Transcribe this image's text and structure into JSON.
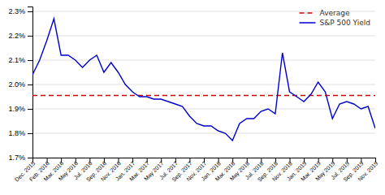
{
  "chart_data": {
    "type": "line",
    "categories": [
      "Dec. 2015",
      null,
      "Feb. 2016",
      null,
      "Mar. 2016",
      null,
      "May 2016",
      null,
      "Jul. 2016",
      null,
      "Sep. 2016",
      null,
      "Nov. 2016",
      null,
      "Jan. 2017",
      null,
      "Mar. 2017",
      null,
      "May 2017",
      null,
      "Jul. 2017",
      null,
      "Sep. 2017",
      null,
      "Nov. 2017",
      null,
      "Jan. 2018",
      null,
      "Mar. 2018",
      null,
      "May 2018",
      null,
      "Jul. 2018",
      null,
      "Sep. 2018",
      null,
      "Nov. 2018",
      null,
      "Jan. 2019",
      null,
      "Mar. 2019",
      null,
      "May 2019",
      null,
      "Jul. 2019",
      null,
      "Sep. 2019",
      null,
      "Nov. 2019"
    ],
    "series": [
      {
        "name": "Average",
        "color": "#CC0000",
        "line_style": "dashed",
        "values": [
          1.955,
          1.955,
          1.955,
          1.955,
          1.955,
          1.955,
          1.955,
          1.955,
          1.955,
          1.955,
          1.955,
          1.955,
          1.955,
          1.955,
          1.955,
          1.955,
          1.955,
          1.955,
          1.955,
          1.955,
          1.955,
          1.955,
          1.955,
          1.955,
          1.955,
          1.955,
          1.955,
          1.955,
          1.955,
          1.955,
          1.955,
          1.955,
          1.955,
          1.955,
          1.955,
          1.955,
          1.955,
          1.955,
          1.955,
          1.955,
          1.955,
          1.955,
          1.955,
          1.955,
          1.955,
          1.955,
          1.955,
          1.955,
          1.955
        ]
      },
      {
        "name": "S&P 500 Yield",
        "color": "#0000CC",
        "line_style": "solid",
        "values": [
          2.04,
          2.1,
          2.18,
          2.27,
          2.12,
          2.12,
          2.1,
          2.07,
          2.1,
          2.12,
          2.05,
          2.09,
          2.05,
          2.0,
          1.97,
          1.95,
          1.95,
          1.94,
          1.94,
          1.93,
          1.92,
          1.91,
          1.87,
          1.84,
          1.83,
          1.83,
          1.81,
          1.8,
          1.77,
          1.84,
          1.86,
          1.86,
          1.89,
          1.9,
          1.88,
          2.13,
          1.97,
          1.95,
          1.93,
          1.96,
          2.01,
          1.97,
          1.86,
          1.92,
          1.93,
          1.92,
          1.9,
          1.91,
          1.82
        ]
      }
    ],
    "ylim": [
      1.7,
      2.32
    ],
    "yticks": [
      {
        "value": 1.7,
        "label": "1.7%"
      },
      {
        "value": 1.8,
        "label": "1.8%"
      },
      {
        "value": 1.9,
        "label": "1.9%"
      },
      {
        "value": 2.0,
        "label": "2.0%"
      },
      {
        "value": 2.1,
        "label": "2.1%"
      },
      {
        "value": 2.2,
        "label": "2.2%"
      },
      {
        "value": 2.3,
        "label": "2.3%"
      }
    ],
    "grid": true,
    "legend": "upper-right"
  }
}
